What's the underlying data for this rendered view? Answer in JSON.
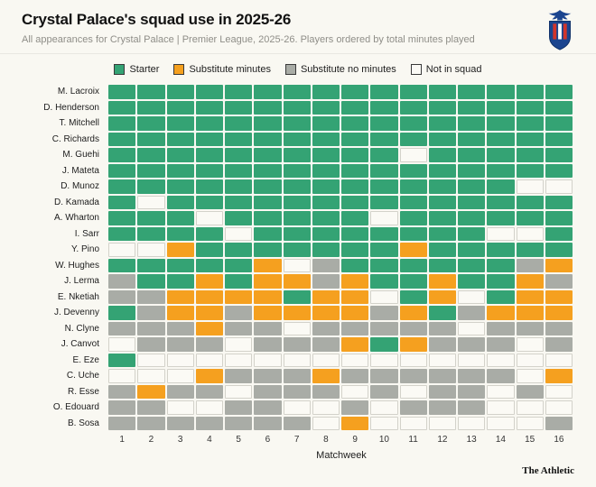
{
  "header": {
    "title": "Crystal Palace's squad use in 2025-26",
    "subtitle": "All appearances for Crystal Palace | Premier League, 2025-26. Players ordered by total minutes played",
    "logo_name": "crystal-palace-crest"
  },
  "footer": {
    "brand": "The Athletic"
  },
  "chart_data": {
    "type": "heatmap",
    "title": "Crystal Palace's squad use in 2025-26",
    "xlabel": "Matchweek",
    "matchweeks": [
      1,
      2,
      3,
      4,
      5,
      6,
      7,
      8,
      9,
      10,
      11,
      12,
      13,
      14,
      15,
      16
    ],
    "legend": [
      {
        "key": "S",
        "label": "Starter",
        "color": "#34a374"
      },
      {
        "key": "M",
        "label": "Substitute minutes",
        "color": "#f5a01f"
      },
      {
        "key": "N",
        "label": "Substitute no minutes",
        "color": "#a9aca6"
      },
      {
        "key": "X",
        "label": "Not in squad",
        "color": "#fbfaf5"
      }
    ],
    "codes": {
      "S": "Starter",
      "M": "Substitute minutes",
      "N": "Substitute no minutes",
      "X": "Not in squad"
    },
    "players": [
      "M. Lacroix",
      "D. Henderson",
      "T. Mitchell",
      "C. Richards",
      "M. Guehi",
      "J. Mateta",
      "D. Munoz",
      "D. Kamada",
      "A. Wharton",
      "I. Sarr",
      "Y. Pino",
      "W. Hughes",
      "J. Lerma",
      "E. Nketiah",
      "J. Devenny",
      "N. Clyne",
      "J. Canvot",
      "E. Eze",
      "C. Uche",
      "R. Esse",
      "O. Edouard",
      "B. Sosa"
    ],
    "grid": [
      "SSSSSSSSSSSSSSSS",
      "SSSSSSSSSSSSSSSS",
      "SSSSSSSSSSSSSSSS",
      "SSSSSSSSSSSSSSSS",
      "SSSSSSSSSSXSSSSS",
      "SSSSSSSSSSSSSSSS",
      "SSSSSSSSSSSSSSXX",
      "SXSSSSSSSSSSSSSS",
      "SSSXSSSSSXSSSSSS",
      "SSSSXSSSSSSSSXXS",
      "XXMSSSSSSSMSSSSS",
      "SSSSSMXNSSSSSSNM",
      "NSSMSMMNMSSMSSMN",
      "NNMMMMSMMXSMXSMM",
      "SNMMNMMMMNMSNMMM",
      "NNNMNNXNNNNNXNNN",
      "XNNNXNNNMSMNNNXN",
      "SXXXXXXXXXXXXXXX",
      "XXXMNNNMNNNNNNXM",
      "NMNNXNNNXNXNNXNX",
      "NNXXNNXXNXNNNXXX",
      "NNNNNNNXMXXXXXXN"
    ]
  }
}
